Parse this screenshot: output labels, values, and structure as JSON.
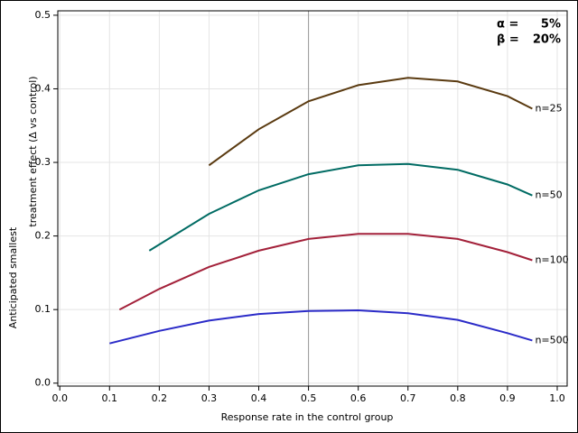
{
  "chart_data": {
    "type": "line",
    "y_label_lines": [
      "Anticipated smallest",
      "treatment effect (Δ vs control)"
    ],
    "x_label": "Response rate in the control group",
    "xlim": [
      -0.004,
      1.02
    ],
    "ylim": [
      -0.004,
      0.506
    ],
    "xticks": [
      {
        "value": 0,
        "label": "0.0"
      },
      0.1,
      0.2,
      0.3,
      0.4,
      0.5,
      0.6,
      0.7,
      0.8,
      0.9,
      {
        "value": 1,
        "label": "1.0"
      }
    ],
    "yticks": [
      {
        "value": 0,
        "label": "0.0"
      },
      0.1,
      0.2,
      0.3,
      0.4,
      0.5
    ],
    "grid": true,
    "reference_x": 0.5,
    "annotations": [
      {
        "label": "α =",
        "value": "5%"
      },
      {
        "label": "β =",
        "value": "20%"
      }
    ],
    "series": [
      {
        "name": "n=25",
        "color": "#5a3a10",
        "x": [
          0.3,
          0.4,
          0.5,
          0.6,
          0.7,
          0.8,
          0.9,
          0.95
        ],
        "values": [
          0.296,
          0.345,
          0.383,
          0.405,
          0.415,
          0.41,
          0.39,
          0.373
        ]
      },
      {
        "name": "n=50",
        "color": "#006b63",
        "x": [
          0.18,
          0.3,
          0.4,
          0.5,
          0.6,
          0.7,
          0.8,
          0.9,
          0.95
        ],
        "values": [
          0.18,
          0.23,
          0.262,
          0.284,
          0.296,
          0.298,
          0.29,
          0.27,
          0.255
        ]
      },
      {
        "name": "n=100",
        "color": "#a3213a",
        "x": [
          0.12,
          0.2,
          0.3,
          0.4,
          0.5,
          0.6,
          0.7,
          0.8,
          0.9,
          0.95
        ],
        "values": [
          0.1,
          0.128,
          0.158,
          0.18,
          0.196,
          0.203,
          0.203,
          0.196,
          0.178,
          0.167
        ]
      },
      {
        "name": "n=500",
        "color": "#2b2bc8",
        "x": [
          0.1,
          0.2,
          0.3,
          0.4,
          0.5,
          0.6,
          0.7,
          0.8,
          0.9,
          0.95
        ],
        "values": [
          0.054,
          0.071,
          0.085,
          0.094,
          0.098,
          0.099,
          0.095,
          0.086,
          0.068,
          0.058
        ]
      }
    ]
  }
}
